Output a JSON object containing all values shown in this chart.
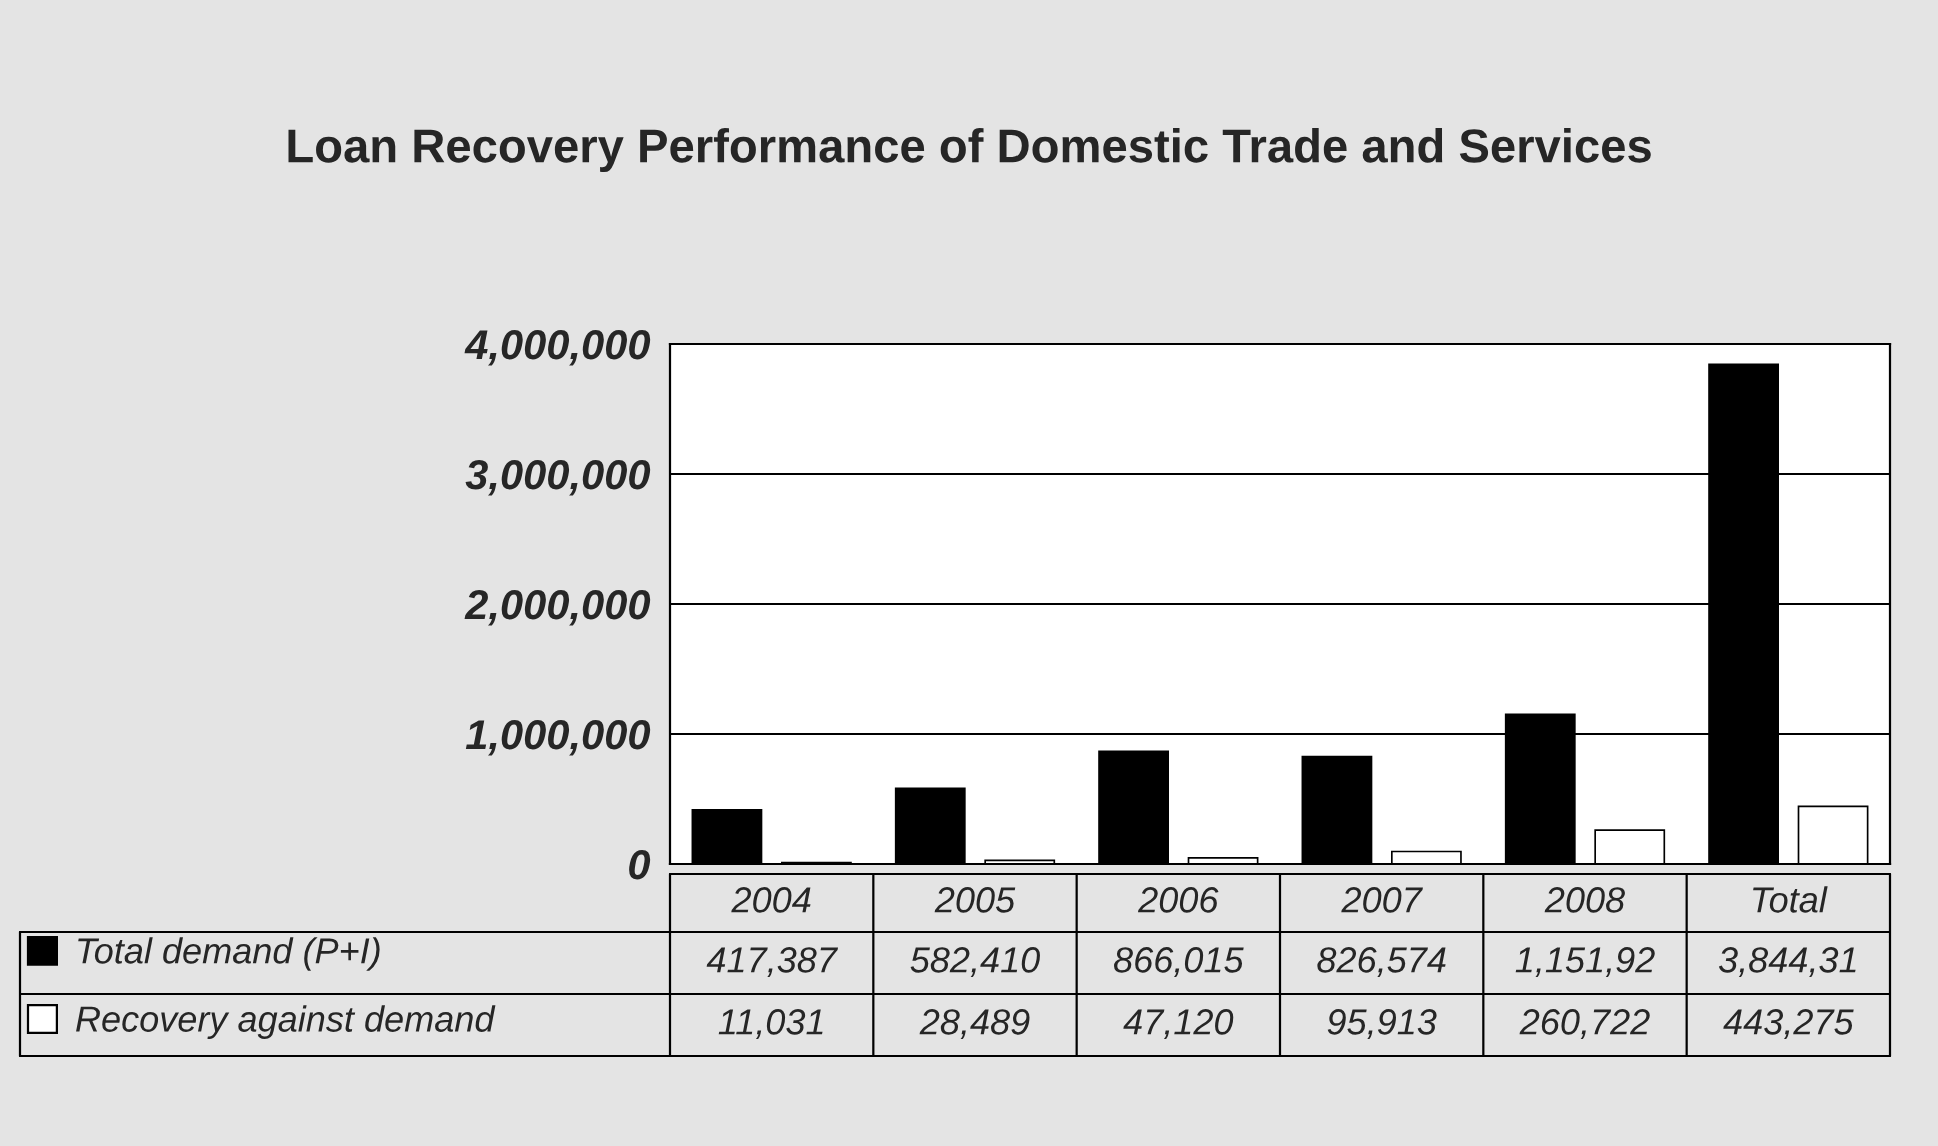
{
  "chart_data": {
    "type": "bar",
    "title": "Loan Recovery Performance of Domestic Trade and Services",
    "categories": [
      "2004",
      "2005",
      "2006",
      "2007",
      "2008",
      "Total"
    ],
    "series": [
      {
        "name": "Total demand (P+I)",
        "color": "#000000",
        "values": [
          417387,
          582410,
          866015,
          826574,
          1151920,
          3844310
        ],
        "value_labels": [
          "417,387",
          "582,410",
          "866,015",
          "826,574",
          "1,151,92",
          "3,844,31"
        ]
      },
      {
        "name": "Recovery against demand",
        "color": "#ffffff",
        "values": [
          11031,
          28489,
          47120,
          95913,
          260722,
          443275
        ],
        "value_labels": [
          "11,031",
          "28,489",
          "47,120",
          "95,913",
          "260,722",
          "443,275"
        ]
      }
    ],
    "ylim": [
      0,
      4000000
    ],
    "yticks": [
      {
        "value": 0,
        "label": "0"
      },
      {
        "value": 1000000,
        "label": "1,000,000"
      },
      {
        "value": 2000000,
        "label": "2,000,000"
      },
      {
        "value": 3000000,
        "label": "3,000,000"
      },
      {
        "value": 4000000,
        "label": "4,000,000"
      }
    ],
    "grid": "y",
    "legend": "bottom left"
  }
}
